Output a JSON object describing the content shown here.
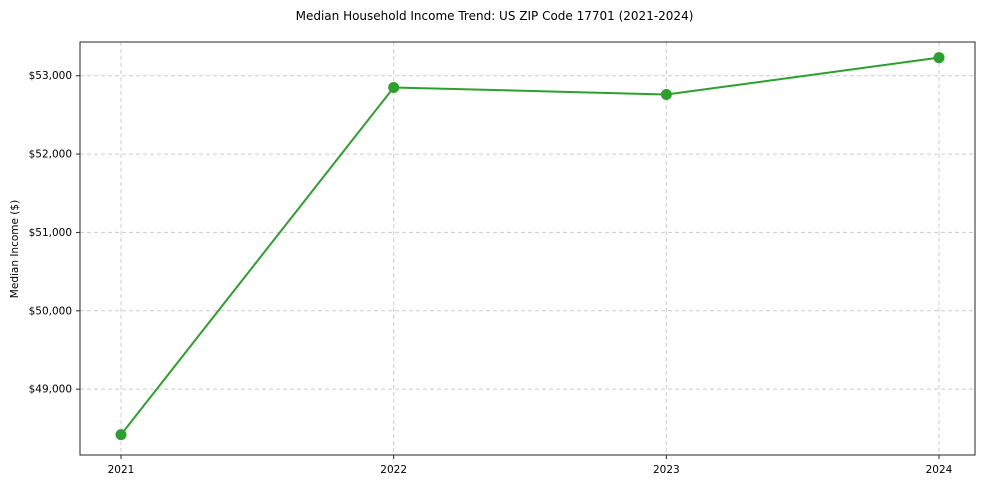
{
  "chart_data": {
    "type": "line",
    "title": "Median Household Income Trend: US ZIP Code 17701 (2021-2024)",
    "xlabel": "",
    "ylabel": "Median Income ($)",
    "x": [
      2021,
      2022,
      2023,
      2024
    ],
    "xtick_labels": [
      "2021",
      "2022",
      "2023",
      "2024"
    ],
    "series": [
      {
        "name": "Median Household Income",
        "values": [
          48420,
          52850,
          52760,
          53230
        ]
      }
    ],
    "ylim": [
      48160,
      53430
    ],
    "yticks": [
      49000,
      50000,
      51000,
      52000,
      53000
    ],
    "ytick_labels": [
      "$49,000",
      "$50,000",
      "$51,000",
      "$52,000",
      "$53,000"
    ],
    "grid": true,
    "legend": "none",
    "line_color": "#2ca02c",
    "marker": "circle",
    "grid_color": "#cccccc",
    "spine_color": "#262626"
  }
}
